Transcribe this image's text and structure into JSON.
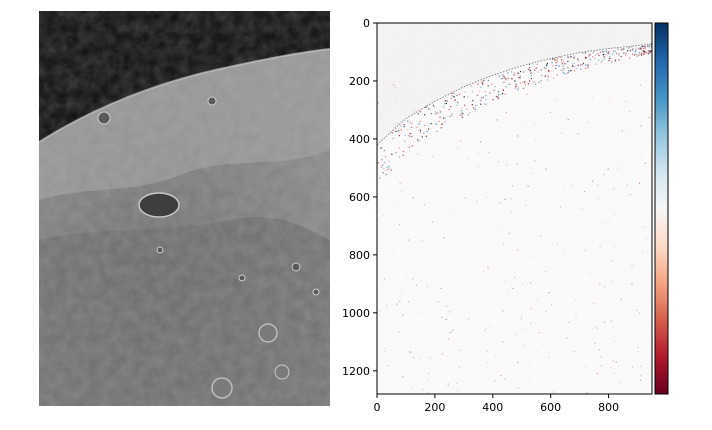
{
  "chart_data": [
    {
      "type": "image",
      "description_kind": "grayscale photograph",
      "axes_visible": false
    },
    {
      "type": "heatmap",
      "colormap": "RdBu",
      "xlim": [
        0,
        950
      ],
      "ylim": [
        1280,
        0
      ],
      "x_ticks": [
        "0",
        "200",
        "400",
        "600",
        "800"
      ],
      "y_ticks": [
        "0",
        "200",
        "400",
        "600",
        "800",
        "1000",
        "1200"
      ],
      "x_tick_values": [
        0,
        200,
        400,
        600,
        800
      ],
      "y_tick_values": [
        0,
        200,
        400,
        600,
        800,
        1000,
        1200
      ],
      "colorbar": true,
      "colorbar_ticks_visible": false,
      "boundary_curve": [
        [
          0,
          420
        ],
        [
          100,
          330
        ],
        [
          200,
          270
        ],
        [
          300,
          220
        ],
        [
          400,
          180
        ],
        [
          500,
          148
        ],
        [
          600,
          122
        ],
        [
          700,
          102
        ],
        [
          800,
          88
        ],
        [
          900,
          78
        ],
        [
          950,
          72
        ]
      ]
    }
  ],
  "colors": {
    "space": "#0b0b0b",
    "background_panel": "#f4f4f4",
    "cmap_stops": [
      "#67001f",
      "#b2182b",
      "#d6604d",
      "#f4a582",
      "#fddbc7",
      "#f7f7f7",
      "#d1e5f0",
      "#92c5de",
      "#4393c3",
      "#2166ac",
      "#053061"
    ]
  }
}
